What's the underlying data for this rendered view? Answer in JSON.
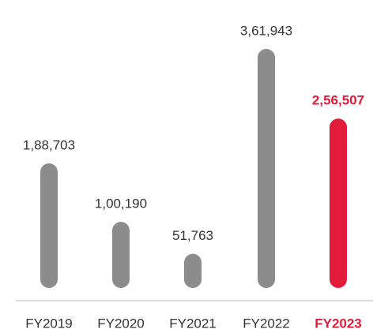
{
  "chart_data": {
    "type": "bar",
    "categories": [
      "FY2019",
      "FY2020",
      "FY2021",
      "FY2022",
      "FY2023"
    ],
    "values": [
      188703,
      100190,
      51763,
      361943,
      256507
    ],
    "value_labels": [
      "1,88,703",
      "1,00,190",
      "51,763",
      "3,61,943",
      "2,56,507"
    ],
    "colors": [
      "#8c8c8c",
      "#8c8c8c",
      "#8c8c8c",
      "#8c8c8c",
      "#e31b3a"
    ],
    "highlight_color": "#e31b3a"
  }
}
